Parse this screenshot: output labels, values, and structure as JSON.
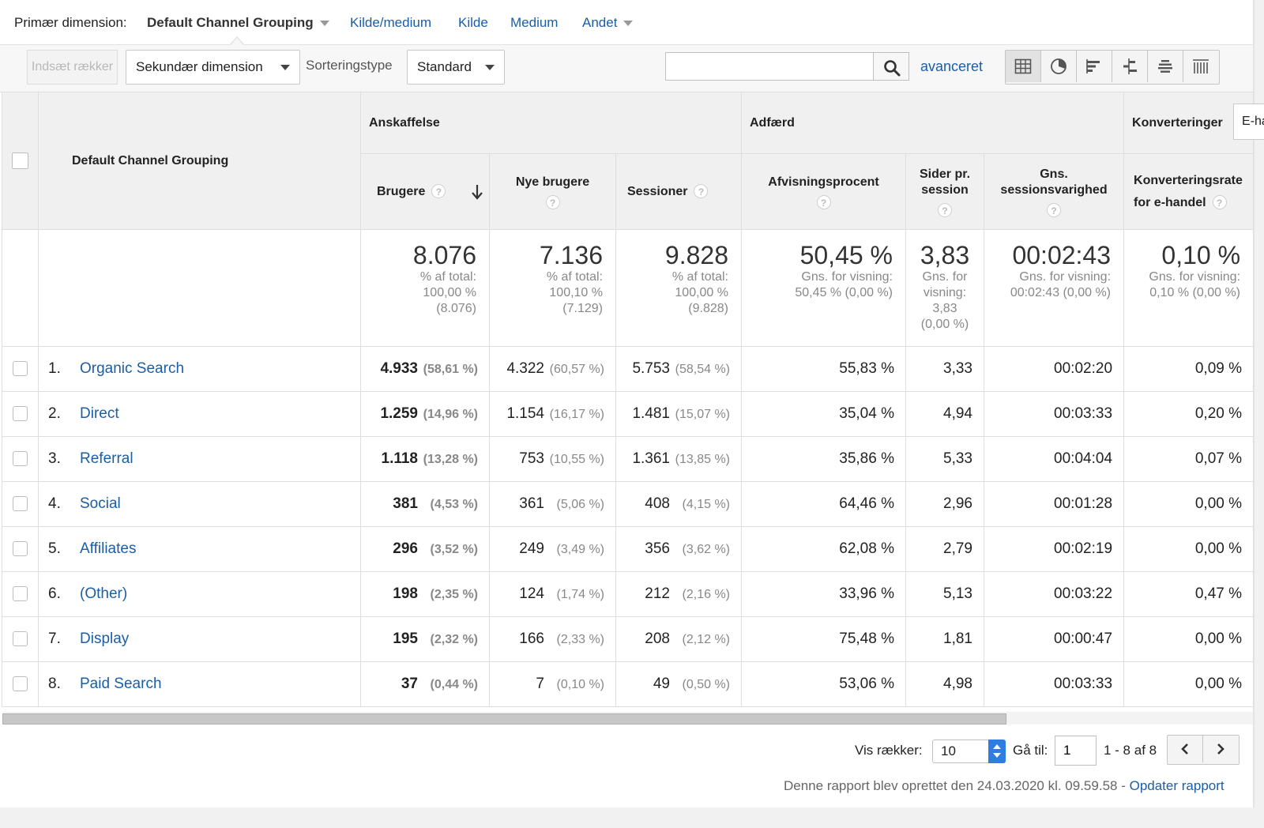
{
  "primary_dimension": {
    "label": "Primær dimension:",
    "current": "Default Channel Grouping",
    "options": [
      "Kilde/medium",
      "Kilde",
      "Medium",
      "Andet"
    ]
  },
  "toolbar": {
    "insert_rows": "Indsæt rækker",
    "secondary_dimension": "Sekundær dimension",
    "sort_type_label": "Sorteringstype",
    "sort_type_value": "Standard",
    "search_value": "",
    "advanced_link": "avanceret"
  },
  "view_icons": [
    "table-view-icon",
    "pie-view-icon",
    "bar-view-icon",
    "comparison-view-icon",
    "term-cloud-icon",
    "pivot-view-icon"
  ],
  "table": {
    "dimension_header": "Default Channel Grouping",
    "groups": {
      "acquisition": "Anskaffelse",
      "behavior": "Adfærd",
      "conversions": "Konverteringer",
      "conversions_select": "E-handel"
    },
    "columns": {
      "users": "Brugere",
      "new_users": "Nye brugere",
      "sessions": "Sessioner",
      "bounce_rate": "Afvisningsprocent",
      "pages_per_session_1": "Sider pr.",
      "pages_per_session_2": "session",
      "avg_duration_1": "Gns.",
      "avg_duration_2": "sessionsvarighed",
      "conv_rate_1": "Konverteringsrate",
      "conv_rate_2": "for e-handel"
    },
    "totals": {
      "users": {
        "value": "8.076",
        "l1": "% af total:",
        "l2": "100,00 %",
        "l3": "(8.076)"
      },
      "new_users": {
        "value": "7.136",
        "l1": "% af total:",
        "l2": "100,10 %",
        "l3": "(7.129)"
      },
      "sessions": {
        "value": "9.828",
        "l1": "% af total:",
        "l2": "100,00 %",
        "l3": "(9.828)"
      },
      "bounce_rate": {
        "value": "50,45 %",
        "l1": "Gns. for visning:",
        "l2": "50,45 % (0,00 %)"
      },
      "pages": {
        "value": "3,83",
        "l1": "Gns. for",
        "l2": "visning:",
        "l3": "3,83",
        "l4": "(0,00 %)"
      },
      "duration": {
        "value": "00:02:43",
        "l1": "Gns. for visning:",
        "l2": "00:02:43 (0,00 %)"
      },
      "conv_rate": {
        "value": "0,10 %",
        "l1": "Gns. for visning:",
        "l2": "0,10 % (0,00 %)"
      }
    },
    "rows": [
      {
        "idx": "1.",
        "name": "Organic Search",
        "users": "4.933",
        "users_pct": "(58,61 %)",
        "new_users": "4.322",
        "new_users_pct": "(60,57 %)",
        "sessions": "5.753",
        "sessions_pct": "(58,54 %)",
        "bounce": "55,83 %",
        "pages": "3,33",
        "duration": "00:02:20",
        "conv": "0,09 %"
      },
      {
        "idx": "2.",
        "name": "Direct",
        "users": "1.259",
        "users_pct": "(14,96 %)",
        "new_users": "1.154",
        "new_users_pct": "(16,17 %)",
        "sessions": "1.481",
        "sessions_pct": "(15,07 %)",
        "bounce": "35,04 %",
        "pages": "4,94",
        "duration": "00:03:33",
        "conv": "0,20 %"
      },
      {
        "idx": "3.",
        "name": "Referral",
        "users": "1.118",
        "users_pct": "(13,28 %)",
        "new_users": "753",
        "new_users_pct": "(10,55 %)",
        "sessions": "1.361",
        "sessions_pct": "(13,85 %)",
        "bounce": "35,86 %",
        "pages": "5,33",
        "duration": "00:04:04",
        "conv": "0,07 %"
      },
      {
        "idx": "4.",
        "name": "Social",
        "users": "381",
        "users_pct": "(4,53 %)",
        "new_users": "361",
        "new_users_pct": "(5,06 %)",
        "sessions": "408",
        "sessions_pct": "(4,15 %)",
        "bounce": "64,46 %",
        "pages": "2,96",
        "duration": "00:01:28",
        "conv": "0,00 %"
      },
      {
        "idx": "5.",
        "name": "Affiliates",
        "users": "296",
        "users_pct": "(3,52 %)",
        "new_users": "249",
        "new_users_pct": "(3,49 %)",
        "sessions": "356",
        "sessions_pct": "(3,62 %)",
        "bounce": "62,08 %",
        "pages": "2,79",
        "duration": "00:02:19",
        "conv": "0,00 %"
      },
      {
        "idx": "6.",
        "name": "(Other)",
        "users": "198",
        "users_pct": "(2,35 %)",
        "new_users": "124",
        "new_users_pct": "(1,74 %)",
        "sessions": "212",
        "sessions_pct": "(2,16 %)",
        "bounce": "33,96 %",
        "pages": "5,13",
        "duration": "00:03:22",
        "conv": "0,47 %"
      },
      {
        "idx": "7.",
        "name": "Display",
        "users": "195",
        "users_pct": "(2,32 %)",
        "new_users": "166",
        "new_users_pct": "(2,33 %)",
        "sessions": "208",
        "sessions_pct": "(2,12 %)",
        "bounce": "75,48 %",
        "pages": "1,81",
        "duration": "00:00:47",
        "conv": "0,00 %"
      },
      {
        "idx": "8.",
        "name": "Paid Search",
        "users": "37",
        "users_pct": "(0,44 %)",
        "new_users": "7",
        "new_users_pct": "(0,10 %)",
        "sessions": "49",
        "sessions_pct": "(0,50 %)",
        "bounce": "53,06 %",
        "pages": "4,98",
        "duration": "00:03:33",
        "conv": "0,00 %"
      }
    ]
  },
  "pagination": {
    "show_rows_label": "Vis rækker:",
    "show_rows_value": "10",
    "goto_label": "Gå til:",
    "goto_value": "1",
    "range": "1 - 8 af 8"
  },
  "footer": {
    "note": "Denne rapport blev oprettet den 24.03.2020 kl. 09.59.58 - ",
    "refresh_link": "Opdater rapport"
  },
  "colors": {
    "link": "#1a5ea8",
    "header_bg": "#f0f0f0",
    "toolbar_bg": "#f7f7f7",
    "spinner": "#2f7de1"
  }
}
